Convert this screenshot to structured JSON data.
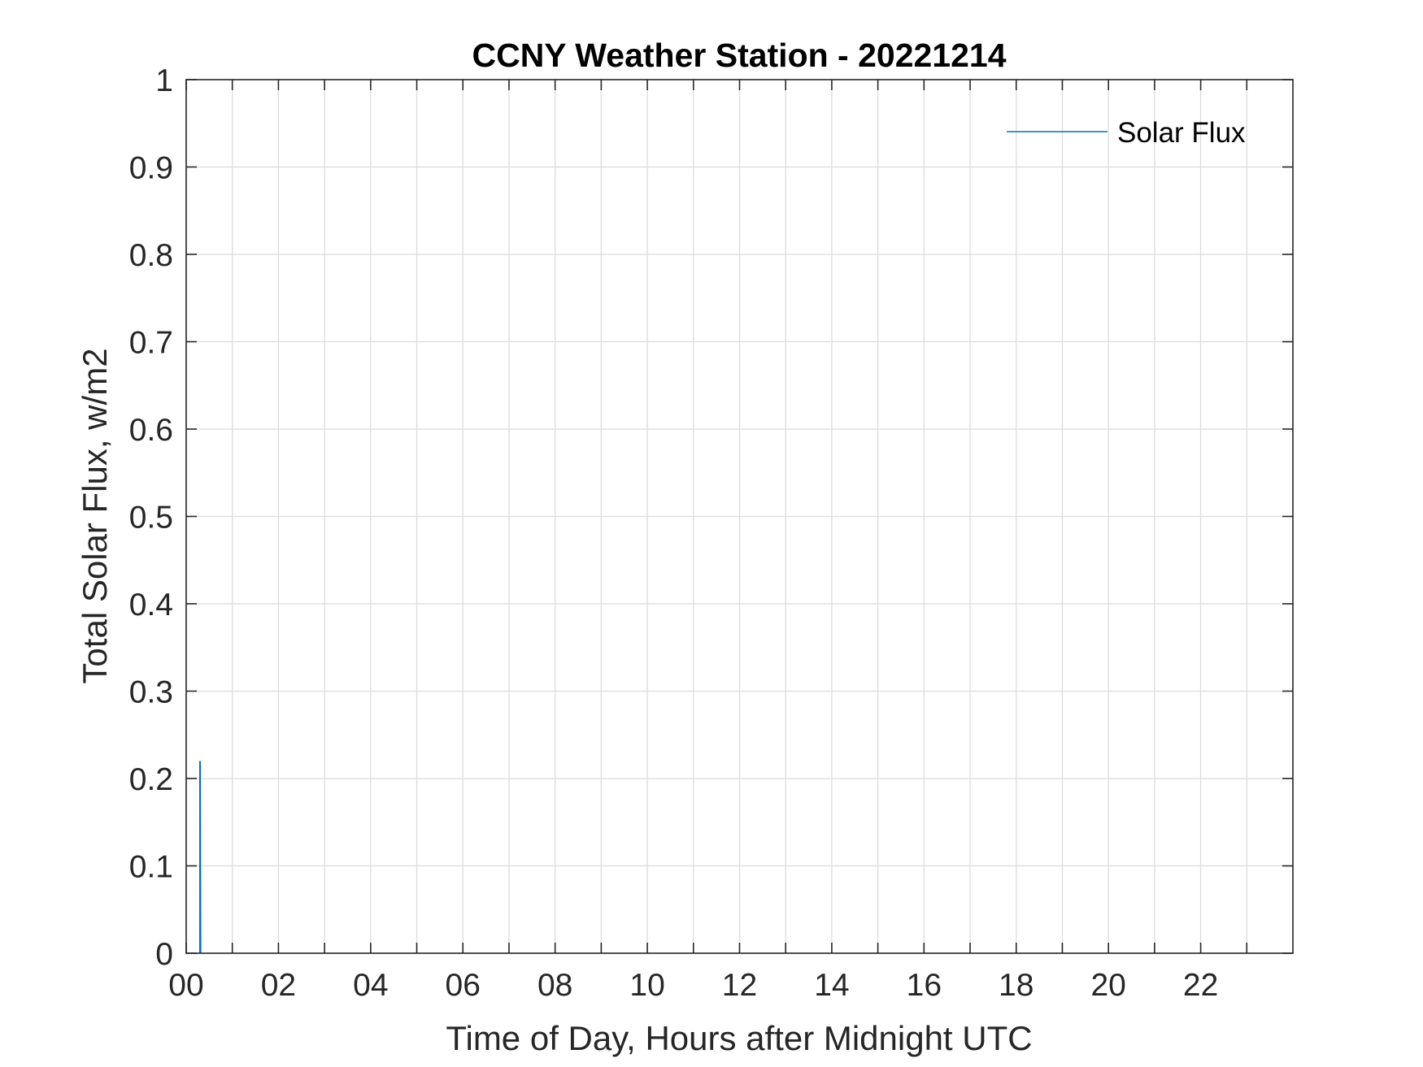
{
  "chart_data": {
    "type": "line",
    "title": "CCNY Weather Station - 20221214",
    "xlabel": "Time of Day, Hours after Midnight UTC",
    "ylabel": "Total Solar Flux, w/m2",
    "xlim": [
      0,
      24
    ],
    "ylim": [
      0,
      1
    ],
    "x_ticks": [
      {
        "value": 0,
        "label": "00"
      },
      {
        "value": 2,
        "label": "02"
      },
      {
        "value": 4,
        "label": "04"
      },
      {
        "value": 6,
        "label": "06"
      },
      {
        "value": 8,
        "label": "08"
      },
      {
        "value": 10,
        "label": "10"
      },
      {
        "value": 12,
        "label": "12"
      },
      {
        "value": 14,
        "label": "14"
      },
      {
        "value": 16,
        "label": "16"
      },
      {
        "value": 18,
        "label": "18"
      },
      {
        "value": 20,
        "label": "20"
      },
      {
        "value": 22,
        "label": "22"
      }
    ],
    "x_minor_ticks": [
      1,
      3,
      5,
      7,
      9,
      11,
      13,
      15,
      17,
      19,
      21,
      23
    ],
    "y_ticks": [
      {
        "value": 0,
        "label": "0"
      },
      {
        "value": 0.1,
        "label": "0.1"
      },
      {
        "value": 0.2,
        "label": "0.2"
      },
      {
        "value": 0.3,
        "label": "0.3"
      },
      {
        "value": 0.4,
        "label": "0.4"
      },
      {
        "value": 0.5,
        "label": "0.5"
      },
      {
        "value": 0.6,
        "label": "0.6"
      },
      {
        "value": 0.7,
        "label": "0.7"
      },
      {
        "value": 0.8,
        "label": "0.8"
      },
      {
        "value": 0.9,
        "label": "0.9"
      },
      {
        "value": 1,
        "label": "1"
      }
    ],
    "grid": true,
    "legend_position": "top-right",
    "series": [
      {
        "name": "Solar Flux",
        "color": "#0072bd",
        "points": [
          {
            "x": 0.3,
            "y": 0
          },
          {
            "x": 0.3,
            "y": 0.22
          },
          {
            "x": 0.31,
            "y": 0
          }
        ]
      }
    ]
  }
}
